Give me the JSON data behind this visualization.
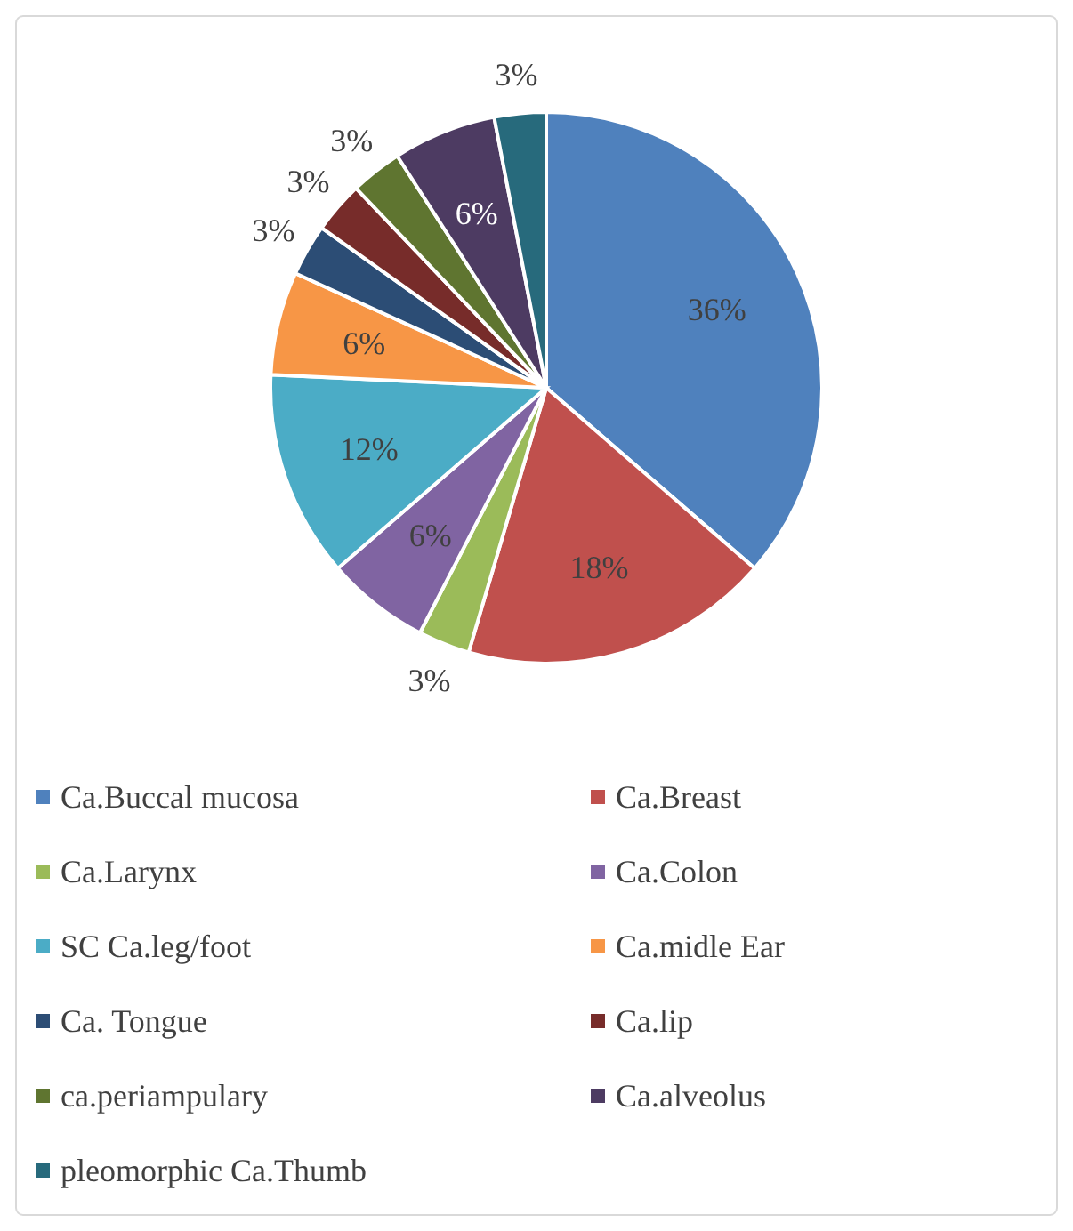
{
  "chart_data": {
    "type": "pie",
    "categories": [
      "Ca.Buccal mucosa",
      "Ca.Breast",
      "Ca.Larynx",
      "Ca.Colon",
      "SC Ca.leg/foot",
      "Ca.midle Ear",
      "Ca. Tongue",
      "Ca.lip",
      "ca.periampulary",
      "Ca.alveolus",
      "pleomorphic Ca.Thumb"
    ],
    "values": [
      36,
      18,
      3,
      6,
      12,
      6,
      3,
      3,
      3,
      6,
      3
    ],
    "value_labels": [
      "36%",
      "18%",
      "3%",
      "6%",
      "12%",
      "6%",
      "3%",
      "3%",
      "3%",
      "6%",
      "3%"
    ],
    "colors": [
      "#4f81bd",
      "#c0504d",
      "#9bbb59",
      "#8064a2",
      "#4bacc6",
      "#f79646",
      "#2c4d75",
      "#772c2a",
      "#5f7530",
      "#4d3b62",
      "#276a7c"
    ],
    "legend": "bottom"
  }
}
